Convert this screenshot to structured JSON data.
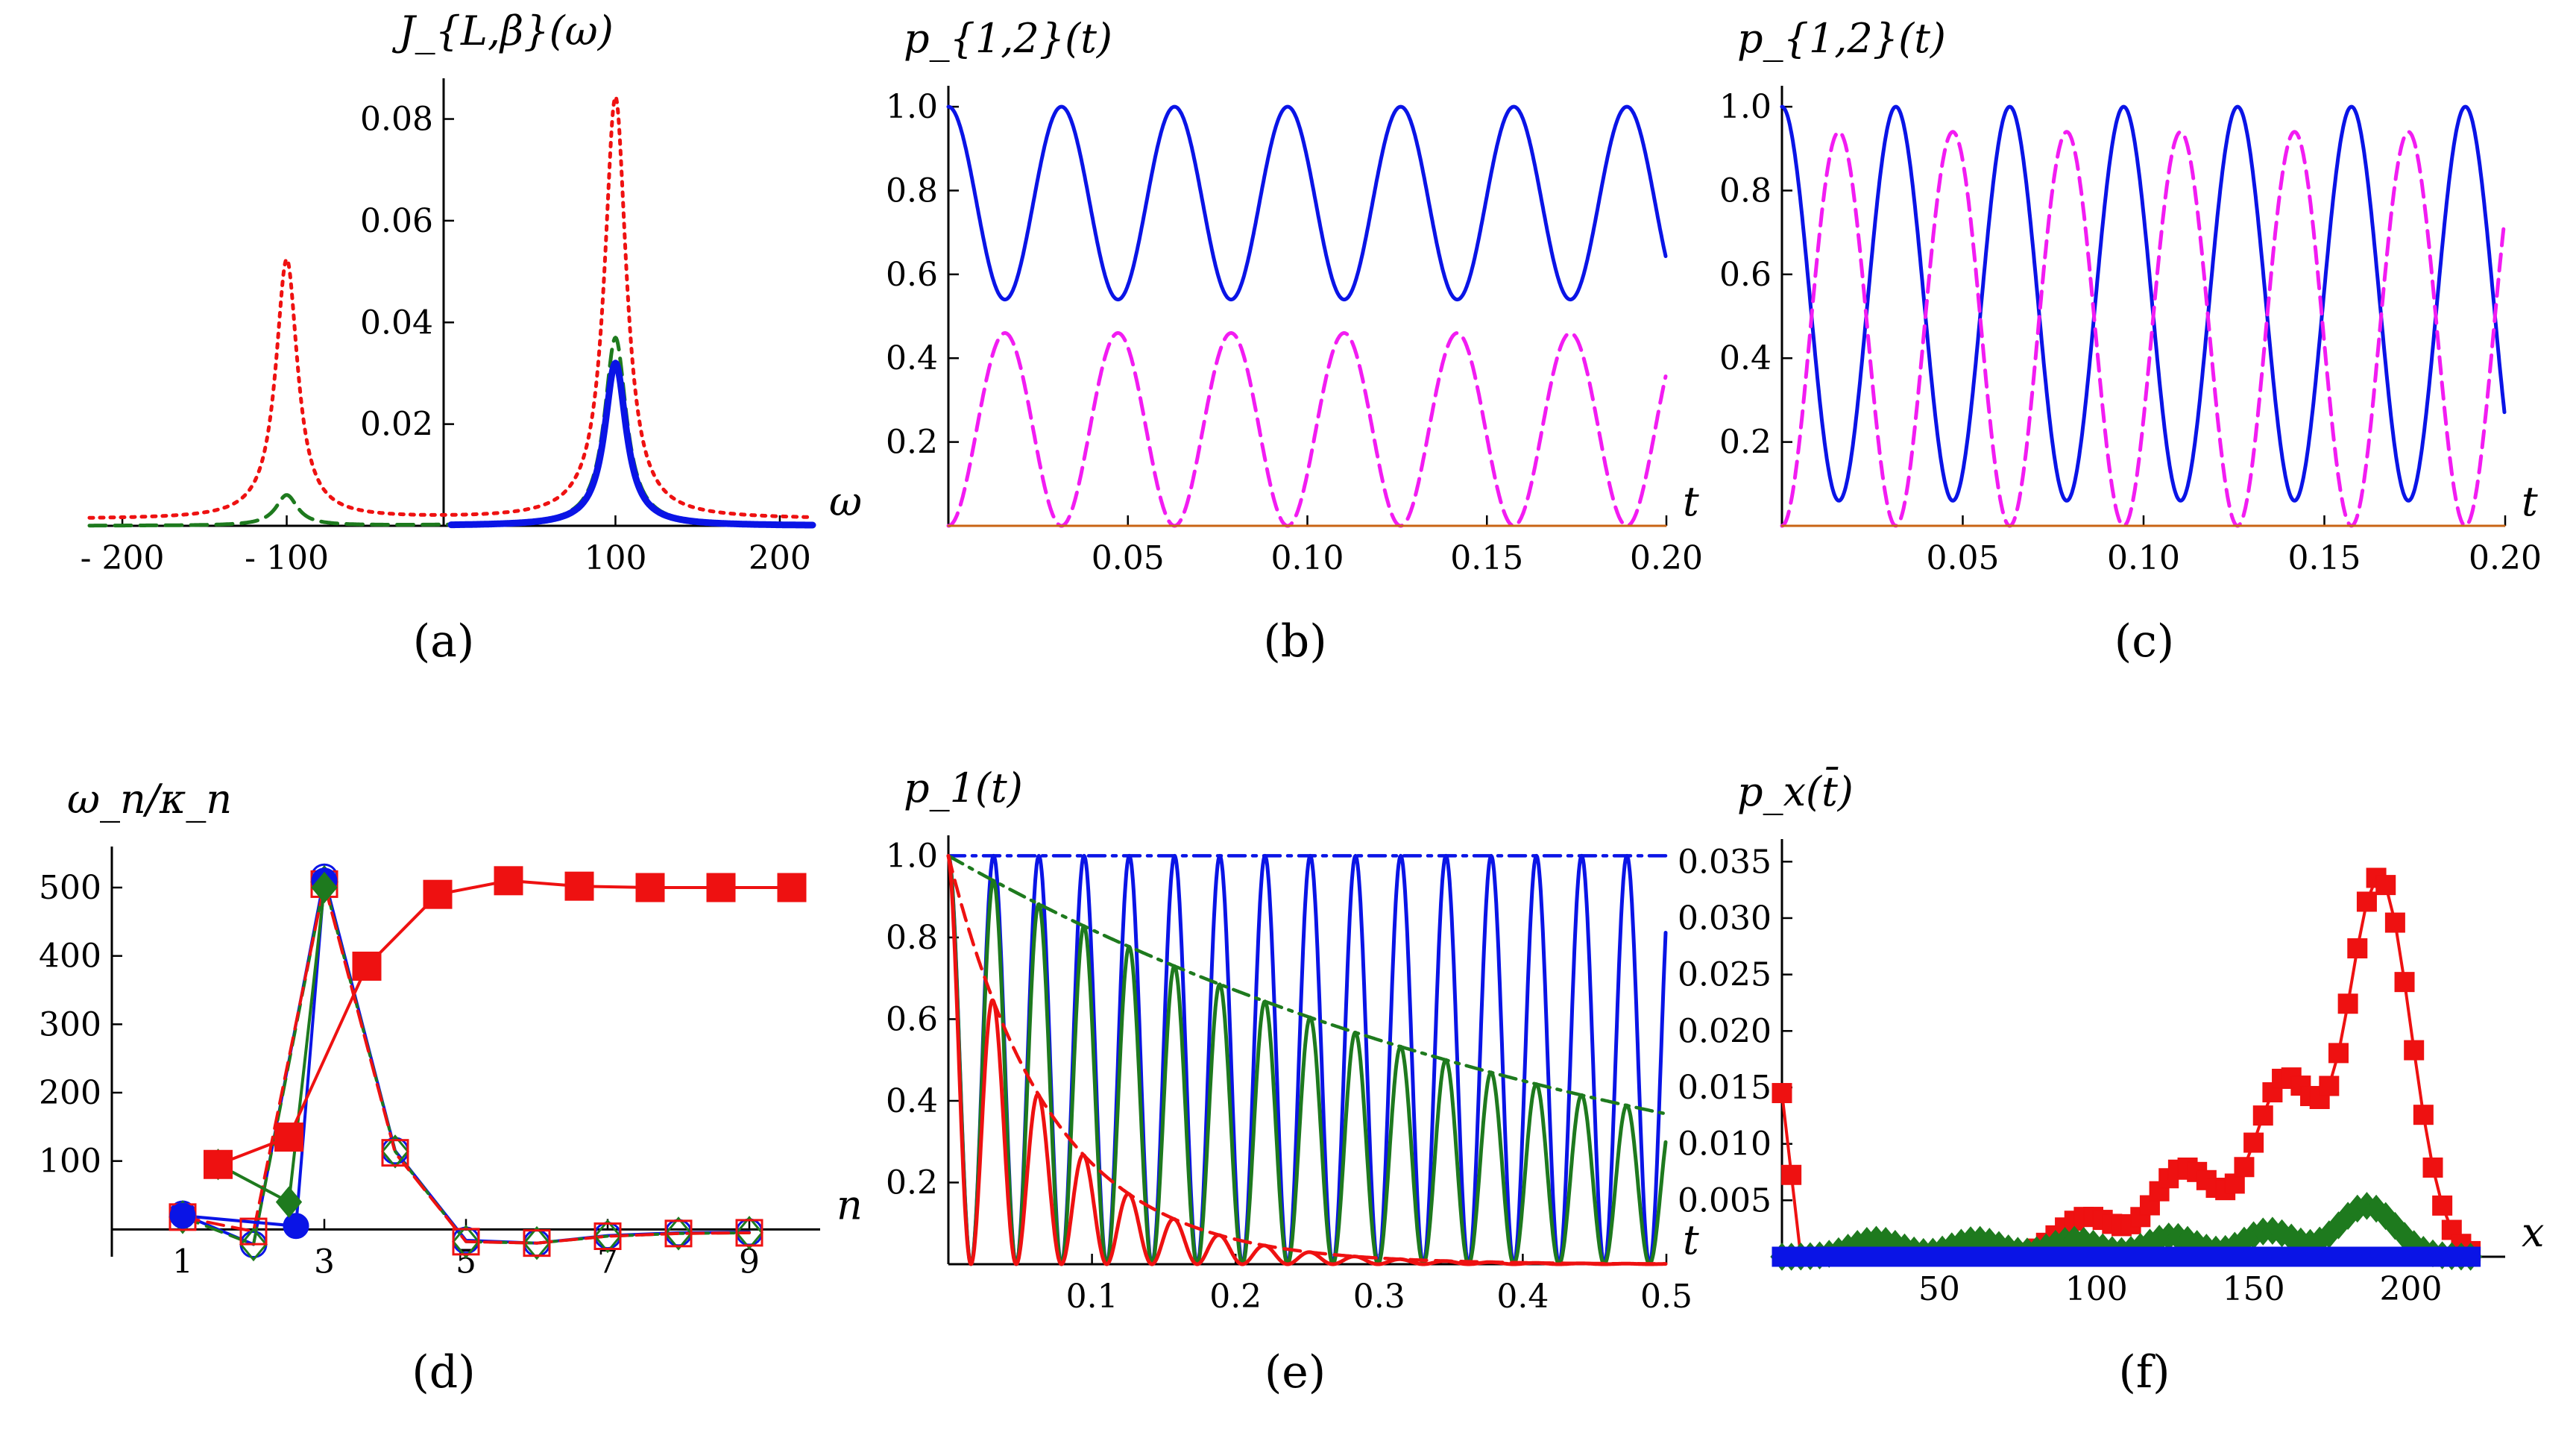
{
  "figure": {
    "panel_tags": [
      "(a)",
      "(b)",
      "(c)",
      "(d)",
      "(e)",
      "(f)"
    ],
    "colors": {
      "blue": "#0a14e6",
      "magenta": "#f21cf2",
      "green": "#1e7a1e",
      "red": "#ee1111",
      "orange": "#c86414"
    }
  },
  "chart_data": [
    {
      "id": "a",
      "type": "line",
      "title": "",
      "ylabel": "J_{L,β}(ω)",
      "xlabel": "ω",
      "xlim": [
        -220,
        220
      ],
      "ylim": [
        0,
        0.088
      ],
      "xticks": [
        -200,
        -100,
        100,
        200
      ],
      "xtick_labels": [
        "- 200",
        "- 100",
        "100",
        "200"
      ],
      "yticks": [
        0.02,
        0.04,
        0.06,
        0.08
      ],
      "ytick_labels": [
        "0.02",
        "0.04",
        "0.06",
        "0.08"
      ],
      "series": [
        {
          "name": "red dotted",
          "style": "dotted",
          "color": "red",
          "peaks": [
            {
              "center": -100,
              "height": 0.051,
              "width": 8
            },
            {
              "center": 100,
              "height": 0.083,
              "width": 8
            }
          ],
          "baseline": 0.0013
        },
        {
          "name": "green dashed",
          "style": "dashed",
          "color": "green",
          "peaks": [
            {
              "center": -100,
              "height": 0.006,
              "width": 8
            },
            {
              "center": 100,
              "height": 0.037,
              "width": 8
            }
          ],
          "baseline": 0
        },
        {
          "name": "blue thick",
          "style": "thick",
          "color": "blue",
          "peaks": [
            {
              "center": 100,
              "height": 0.032,
              "width": 8
            }
          ],
          "baseline": 0,
          "domain": [
            0,
            220
          ]
        }
      ]
    },
    {
      "id": "b",
      "type": "line",
      "ylabel": "p_{1,2}(t)",
      "xlabel": "t",
      "xlim": [
        0,
        0.2
      ],
      "ylim": [
        0,
        1.05
      ],
      "xticks": [
        0.05,
        0.1,
        0.15,
        0.2
      ],
      "xtick_labels": [
        "0.05",
        "0.10",
        "0.15",
        "0.20"
      ],
      "yticks": [
        0.2,
        0.4,
        0.6,
        0.8,
        1.0
      ],
      "ytick_labels": [
        "0.2",
        "0.4",
        "0.6",
        "0.8",
        "1.0"
      ],
      "period": 0.0315,
      "series": [
        {
          "name": "p1",
          "style": "solid",
          "color": "blue",
          "min": 0.54,
          "max": 1.0
        },
        {
          "name": "p2",
          "style": "dashed",
          "color": "magenta",
          "min": 0.0,
          "max": 0.46
        },
        {
          "name": "baseline",
          "style": "solid",
          "color": "orange",
          "value": 0.0
        }
      ]
    },
    {
      "id": "c",
      "type": "line",
      "ylabel": "p_{1,2}(t)",
      "xlabel": "t",
      "xlim": [
        0,
        0.2
      ],
      "ylim": [
        0,
        1.05
      ],
      "xticks": [
        0.05,
        0.1,
        0.15,
        0.2
      ],
      "xtick_labels": [
        "0.05",
        "0.10",
        "0.15",
        "0.20"
      ],
      "yticks": [
        0.2,
        0.4,
        0.6,
        0.8,
        1.0
      ],
      "ytick_labels": [
        "0.2",
        "0.4",
        "0.6",
        "0.8",
        "1.0"
      ],
      "period": 0.0315,
      "series": [
        {
          "name": "p1",
          "style": "solid",
          "color": "blue",
          "min": 0.06,
          "max": 1.0
        },
        {
          "name": "p2",
          "style": "dashed",
          "color": "magenta",
          "min": 0.0,
          "max": 0.94
        },
        {
          "name": "baseline",
          "style": "solid",
          "color": "orange",
          "value": 0.0
        }
      ]
    },
    {
      "id": "d",
      "type": "scatter",
      "ylabel": "ω_n/κ_n",
      "xlabel": "n",
      "xlim": [
        0,
        10
      ],
      "ylim": [
        -40,
        560
      ],
      "xticks": [
        1,
        3,
        5,
        7,
        9
      ],
      "xtick_labels": [
        "1",
        "3",
        "5",
        "7",
        "9"
      ],
      "yticks": [
        100,
        200,
        300,
        400,
        500
      ],
      "ytick_labels": [
        "100",
        "200",
        "300",
        "400",
        "500"
      ],
      "series": [
        {
          "name": "ω red squares",
          "color": "red",
          "marker": "square-filled",
          "line": "solid",
          "x": [
            1.5,
            2.5,
            3.6,
            4.6,
            5.6,
            6.6,
            7.6,
            8.6,
            9.6
          ],
          "y": [
            95,
            135,
            385,
            490,
            510,
            502,
            500,
            500,
            500
          ]
        },
        {
          "name": "ω green diamonds",
          "color": "green",
          "marker": "diamond-filled",
          "line": "solid",
          "x": [
            1.5,
            2.5,
            3.0
          ],
          "y": [
            95,
            40,
            500
          ]
        },
        {
          "name": "ω blue circles",
          "color": "blue",
          "marker": "circle-filled",
          "line": "solid",
          "x": [
            1.0,
            2.6,
            3.0
          ],
          "y": [
            20,
            5,
            510
          ]
        },
        {
          "name": "κ red squares",
          "color": "red",
          "marker": "square-open",
          "line": "dashed",
          "x": [
            1,
            2,
            3,
            4,
            5,
            6,
            7,
            8,
            9
          ],
          "y": [
            18,
            -3,
            505,
            112,
            -18,
            -20,
            -10,
            -6,
            -5
          ]
        },
        {
          "name": "κ green diamonds",
          "color": "green",
          "marker": "diamond-open",
          "line": "dashed",
          "x": [
            1,
            2,
            3,
            4,
            5,
            6,
            7,
            8,
            9
          ],
          "y": [
            18,
            -22,
            508,
            114,
            -18,
            -20,
            -10,
            -6,
            -5
          ]
        },
        {
          "name": "κ blue circles",
          "color": "blue",
          "marker": "circle-open",
          "line": "solid",
          "x": [
            1,
            2,
            3,
            4,
            5,
            6,
            7,
            8,
            9
          ],
          "y": [
            22,
            -22,
            515,
            115,
            -16,
            -20,
            -9,
            -5,
            -4
          ]
        }
      ]
    },
    {
      "id": "e",
      "type": "line",
      "ylabel": "p_1(t)",
      "xlabel": "t",
      "xlim": [
        0,
        0.5
      ],
      "ylim": [
        0,
        1.05
      ],
      "xticks": [
        0.1,
        0.2,
        0.3,
        0.4,
        0.5
      ],
      "xtick_labels": [
        "0.1",
        "0.2",
        "0.3",
        "0.4",
        "0.5"
      ],
      "yticks": [
        0.2,
        0.4,
        0.6,
        0.8,
        1.0
      ],
      "ytick_labels": [
        "0.2",
        "0.4",
        "0.6",
        "0.8",
        "1.0"
      ],
      "period": 0.0315,
      "series": [
        {
          "name": "blue oscillation",
          "style": "solid",
          "color": "blue",
          "decay": 0
        },
        {
          "name": "blue envelope",
          "style": "dashdot",
          "color": "blue",
          "decay": 0,
          "envelope": true
        },
        {
          "name": "green oscillation",
          "style": "solid",
          "color": "green",
          "decay": 2.0
        },
        {
          "name": "green envelope",
          "style": "dashdot",
          "color": "green",
          "decay": 2.0,
          "envelope": true
        },
        {
          "name": "red oscillation",
          "style": "solid",
          "color": "red",
          "decay": 14.0
        },
        {
          "name": "red envelope",
          "style": "dashed",
          "color": "red",
          "decay": 14.0,
          "envelope": true
        }
      ]
    },
    {
      "id": "f",
      "type": "scatter",
      "ylabel": "p_x(t̄)",
      "xlabel": "x",
      "xlim": [
        0,
        230
      ],
      "ylim": [
        0,
        0.037
      ],
      "xticks": [
        50,
        100,
        150,
        200
      ],
      "xtick_labels": [
        "50",
        "100",
        "150",
        "200"
      ],
      "yticks": [
        0.005,
        0.01,
        0.015,
        0.02,
        0.025,
        0.03,
        0.035
      ],
      "ytick_labels": [
        "0.005",
        "0.010",
        "0.015",
        "0.020",
        "0.025",
        "0.030",
        "0.035"
      ],
      "series": [
        {
          "name": "red squares",
          "color": "red",
          "marker": "square-filled",
          "peaks": [
            {
              "center": 97,
              "height": 0.0035,
              "width": 9
            },
            {
              "center": 128,
              "height": 0.0078,
              "width": 10
            },
            {
              "center": 160,
              "height": 0.0155,
              "width": 10
            },
            {
              "center": 190,
              "height": 0.0335,
              "width": 10
            }
          ],
          "edge_start": 0.0145
        },
        {
          "name": "green diamonds",
          "color": "green",
          "marker": "diamond-filled",
          "peaks": [
            {
              "center": 30,
              "height": 0.0015,
              "width": 8
            },
            {
              "center": 62,
              "height": 0.0015,
              "width": 8
            },
            {
              "center": 93,
              "height": 0.0015,
              "width": 8
            },
            {
              "center": 124,
              "height": 0.0018,
              "width": 8
            },
            {
              "center": 155,
              "height": 0.0023,
              "width": 8
            },
            {
              "center": 186,
              "height": 0.0045,
              "width": 9
            }
          ]
        },
        {
          "name": "blue squares",
          "color": "blue",
          "marker": "square-filled",
          "value": 0.0
        }
      ]
    }
  ]
}
